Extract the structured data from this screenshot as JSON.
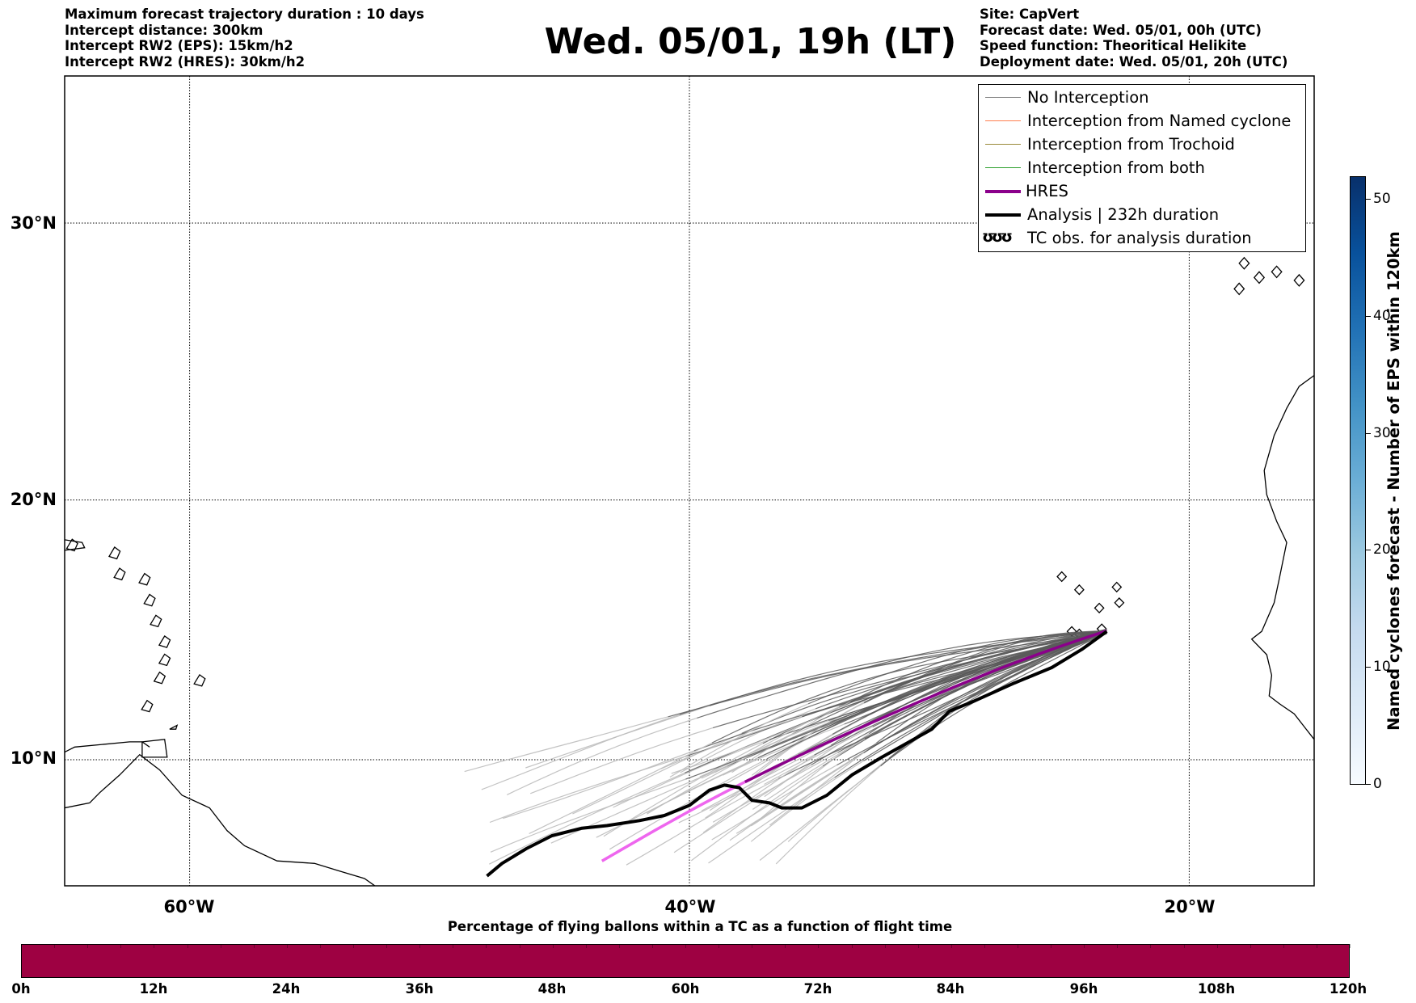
{
  "header": {
    "left_lines": [
      "Maximum forecast trajectory duration : 10 days",
      "Intercept distance: 300km",
      "Intercept RW2 (EPS):  15km/h2",
      "Intercept RW2 (HRES): 30km/h2"
    ],
    "right_lines": [
      "Site: CapVert",
      "Forecast date: Wed. 05/01, 00h (UTC)",
      "Speed function: Theoritical Helikite",
      "Deployment date: Wed. 05/01, 20h (UTC)"
    ],
    "title": "Wed. 05/01, 19h (LT)"
  },
  "map": {
    "lat_labels": [
      "30°N",
      "20°N",
      "10°N"
    ],
    "lon_labels": [
      "60°W",
      "40°W",
      "20°W"
    ],
    "launch_site": {
      "lon": -23.3,
      "lat": 15.0
    },
    "colors": {
      "no_interception": "#808080",
      "named_cyclone": "#ff7f50",
      "trochoid": "#9a8a3a",
      "both": "#2ca02c",
      "hres": "#8b008b",
      "analysis": "#000000"
    }
  },
  "legend": {
    "items": [
      {
        "label": "No Interception",
        "color": "#808080",
        "style": "thin"
      },
      {
        "label": "Interception from Named cyclone",
        "color": "#ff7f50",
        "style": "thin"
      },
      {
        "label": "Interception from Trochoid",
        "color": "#9a8a3a",
        "style": "thin"
      },
      {
        "label": "Interception from both",
        "color": "#2ca02c",
        "style": "thin"
      },
      {
        "label": "HRES",
        "color": "#8b008b",
        "style": "thick"
      },
      {
        "label": "Analysis | 232h duration",
        "color": "#000000",
        "style": "thick"
      },
      {
        "label": "TC obs. for analysis duration",
        "color": "#000000",
        "style": "symbol"
      }
    ],
    "symbol_text": "ʊʊʊ"
  },
  "colorbar_vertical": {
    "title": "Named cyclones forecast - Number of EPS within 120km",
    "ticks": [
      "0",
      "10",
      "20",
      "30",
      "40",
      "50"
    ],
    "range": [
      0,
      52
    ]
  },
  "colorbar_horizontal": {
    "title": "Percentage of flying ballons within a TC as a function of flight time",
    "ticks": [
      "0h",
      "12h",
      "24h",
      "36h",
      "48h",
      "60h",
      "72h",
      "84h",
      "96h",
      "108h",
      "120h"
    ],
    "color": "#9e0142"
  }
}
